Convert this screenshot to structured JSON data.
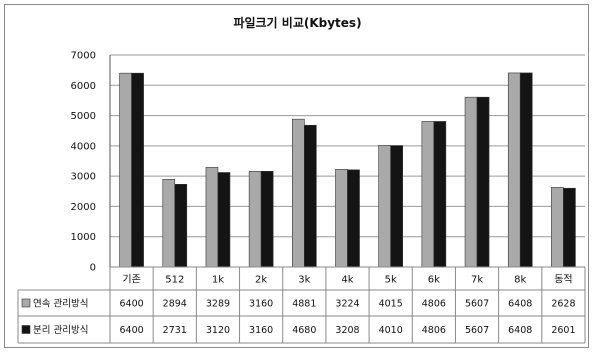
{
  "chart_data": {
    "type": "bar",
    "title": "파일크기 비교(Kbytes)",
    "categories": [
      "기존",
      "512",
      "1k",
      "2k",
      "3k",
      "4k",
      "5k",
      "6k",
      "7k",
      "8k",
      "동적"
    ],
    "series": [
      {
        "name": "연속 관리방식",
        "color": "#a9a9a9",
        "values": [
          6400,
          2894,
          3289,
          3160,
          4881,
          3224,
          4015,
          4806,
          5607,
          6408,
          2628
        ]
      },
      {
        "name": "분리 관리방식",
        "color": "#141414",
        "values": [
          6400,
          2731,
          3120,
          3160,
          4680,
          3208,
          4010,
          4806,
          5607,
          6408,
          2601
        ]
      }
    ],
    "ylim": [
      0,
      7000
    ],
    "yticks": [
      0,
      1000,
      2000,
      3000,
      4000,
      5000,
      6000,
      7000
    ],
    "grid": true,
    "legend": "data-table-left"
  }
}
